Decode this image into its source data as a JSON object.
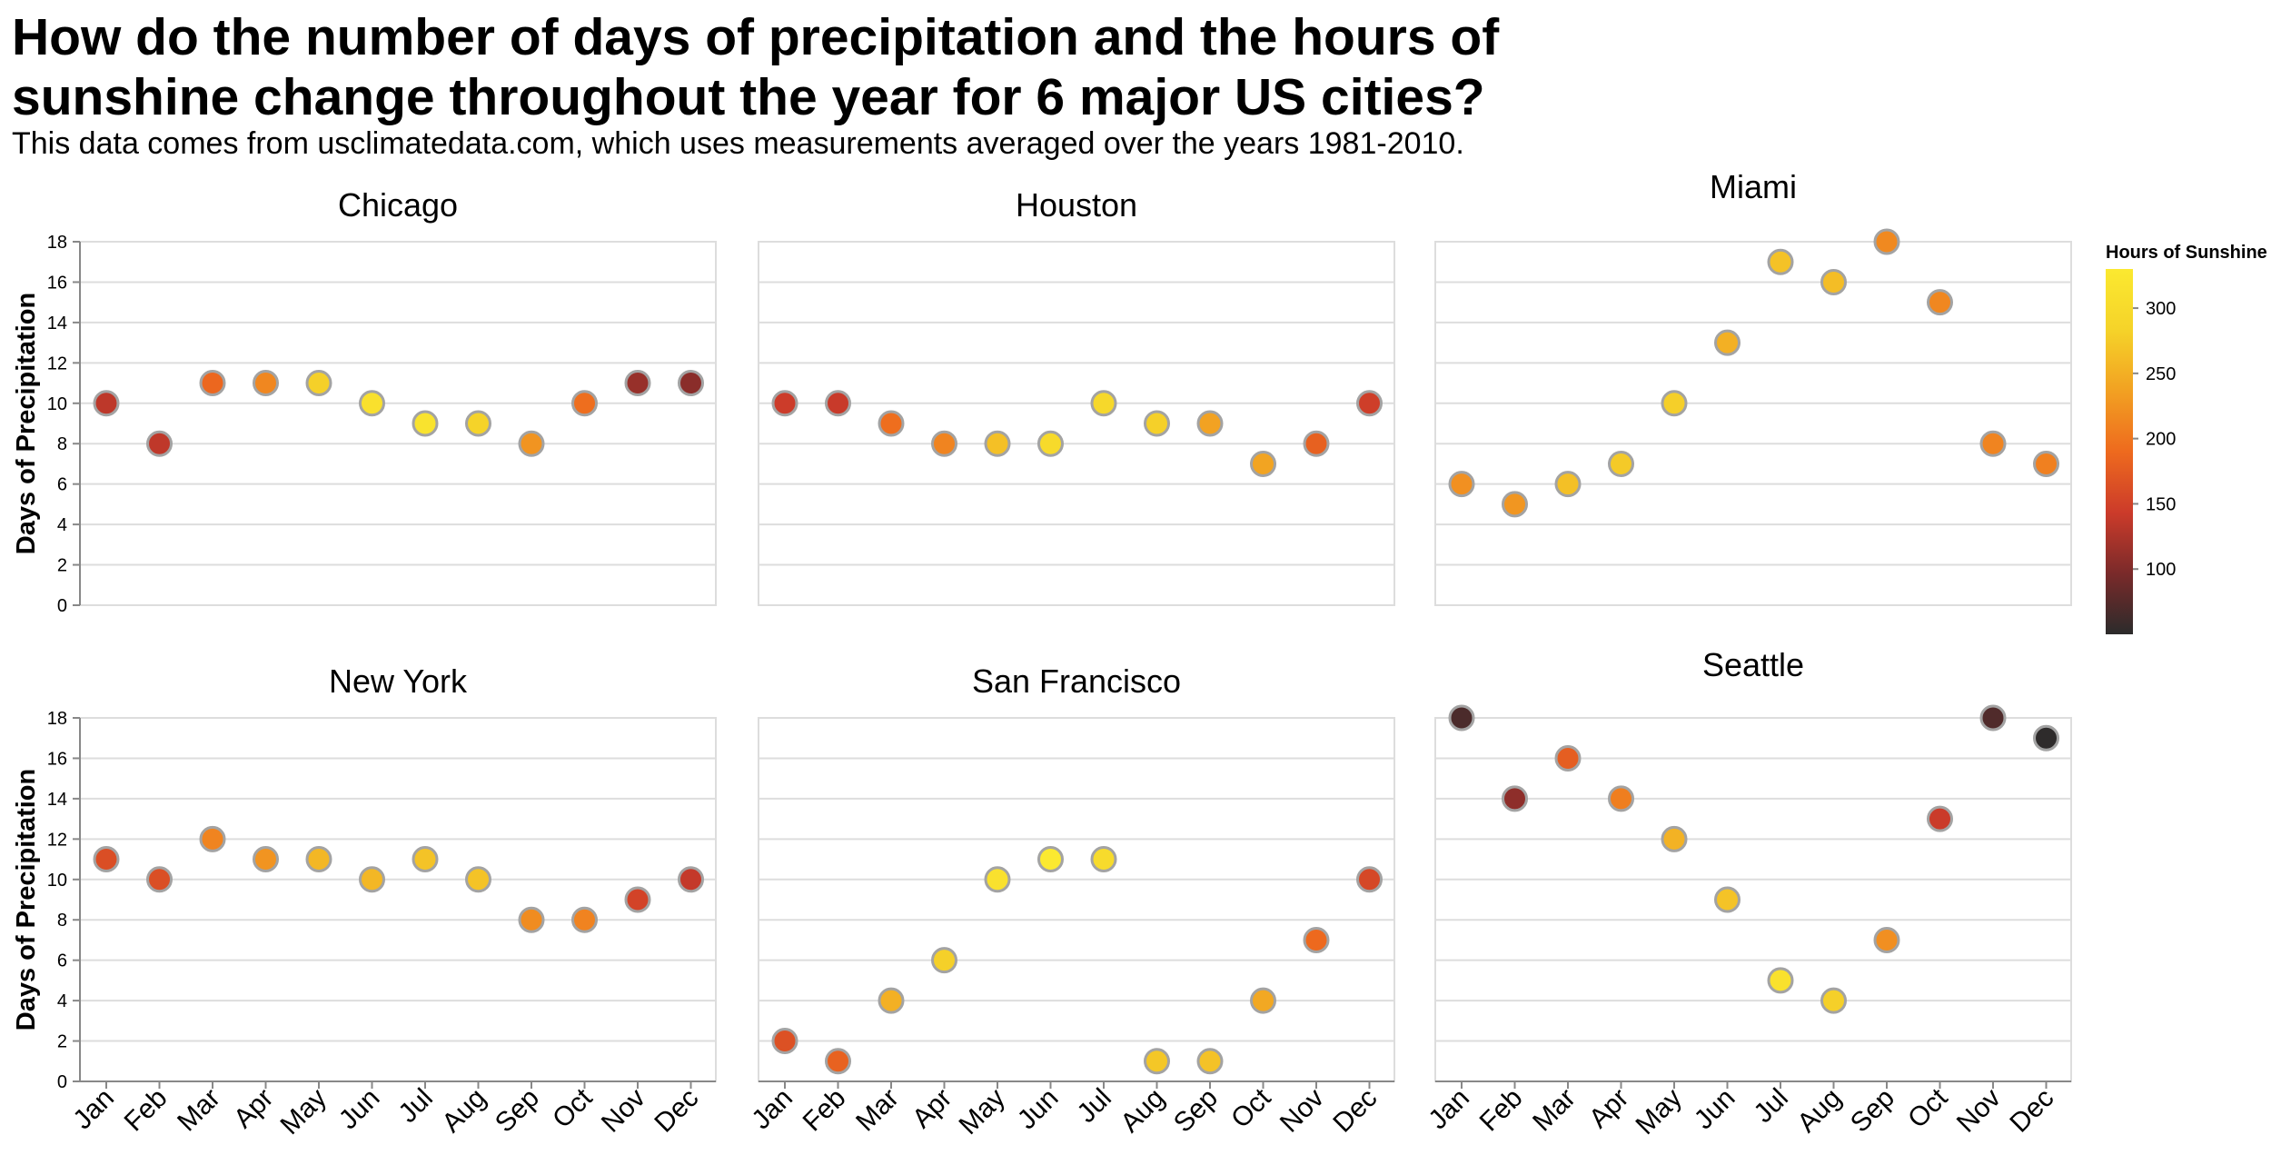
{
  "title": "How do the number of days of precipitation and the hours of\nsunshine change throughout the year for 6 major US cities?",
  "subtitle": "This data comes from usclimatedata.com, which uses measurements averaged over the years 1981-2010.",
  "chart_data": {
    "type": "scatter",
    "facet": "city",
    "categories": [
      "Jan",
      "Feb",
      "Mar",
      "Apr",
      "May",
      "Jun",
      "Jul",
      "Aug",
      "Sep",
      "Oct",
      "Nov",
      "Dec"
    ],
    "ylabel": "Days of Precipitation",
    "ylim": [
      0,
      18
    ],
    "yticks": [
      0,
      2,
      4,
      6,
      8,
      10,
      12,
      14,
      16,
      18
    ],
    "grid": true,
    "color_legend": {
      "title": "Hours of Sunshine",
      "domain": [
        50,
        330
      ],
      "ticks": [
        100,
        150,
        200,
        250,
        300
      ],
      "placement": "right",
      "scheme": [
        "#2b2b2b",
        "#7a2a2a",
        "#cc3b2a",
        "#ee6a1e",
        "#f2a122",
        "#f5d329",
        "#fbe930"
      ]
    },
    "panels": [
      {
        "city": "Chicago",
        "days": [
          10,
          8,
          11,
          11,
          11,
          10,
          9,
          9,
          8,
          10,
          11,
          11
        ],
        "sunshine": [
          135,
          136,
          187,
          215,
          281,
          311,
          318,
          283,
          226,
          193,
          113,
          106
        ]
      },
      {
        "city": "Houston",
        "days": [
          10,
          10,
          9,
          8,
          8,
          8,
          10,
          9,
          9,
          7,
          8,
          10
        ],
        "sunshine": [
          144,
          141,
          193,
          212,
          266,
          298,
          294,
          281,
          238,
          239,
          181,
          146
        ]
      },
      {
        "city": "Miami",
        "days": [
          6,
          5,
          6,
          7,
          10,
          13,
          17,
          16,
          18,
          15,
          8,
          7
        ],
        "sunshine": [
          222,
          227,
          266,
          275,
          280,
          251,
          267,
          263,
          216,
          215,
          212,
          209
        ]
      },
      {
        "city": "New York",
        "days": [
          11,
          10,
          12,
          11,
          11,
          10,
          11,
          10,
          8,
          8,
          9,
          10
        ],
        "sunshine": [
          162,
          163,
          212,
          226,
          257,
          257,
          268,
          268,
          219,
          211,
          151,
          139
        ]
      },
      {
        "city": "San Francisco",
        "days": [
          2,
          1,
          4,
          6,
          10,
          11,
          11,
          1,
          1,
          4,
          7,
          10
        ],
        "sunshine": [
          165,
          182,
          251,
          281,
          314,
          330,
          300,
          272,
          267,
          243,
          189,
          156
        ]
      },
      {
        "city": "Seattle",
        "days": [
          18,
          14,
          16,
          14,
          12,
          9,
          5,
          4,
          7,
          13,
          18,
          17
        ],
        "sunshine": [
          69,
          108,
          178,
          207,
          253,
          268,
          312,
          281,
          221,
          142,
          72,
          52
        ]
      }
    ]
  }
}
